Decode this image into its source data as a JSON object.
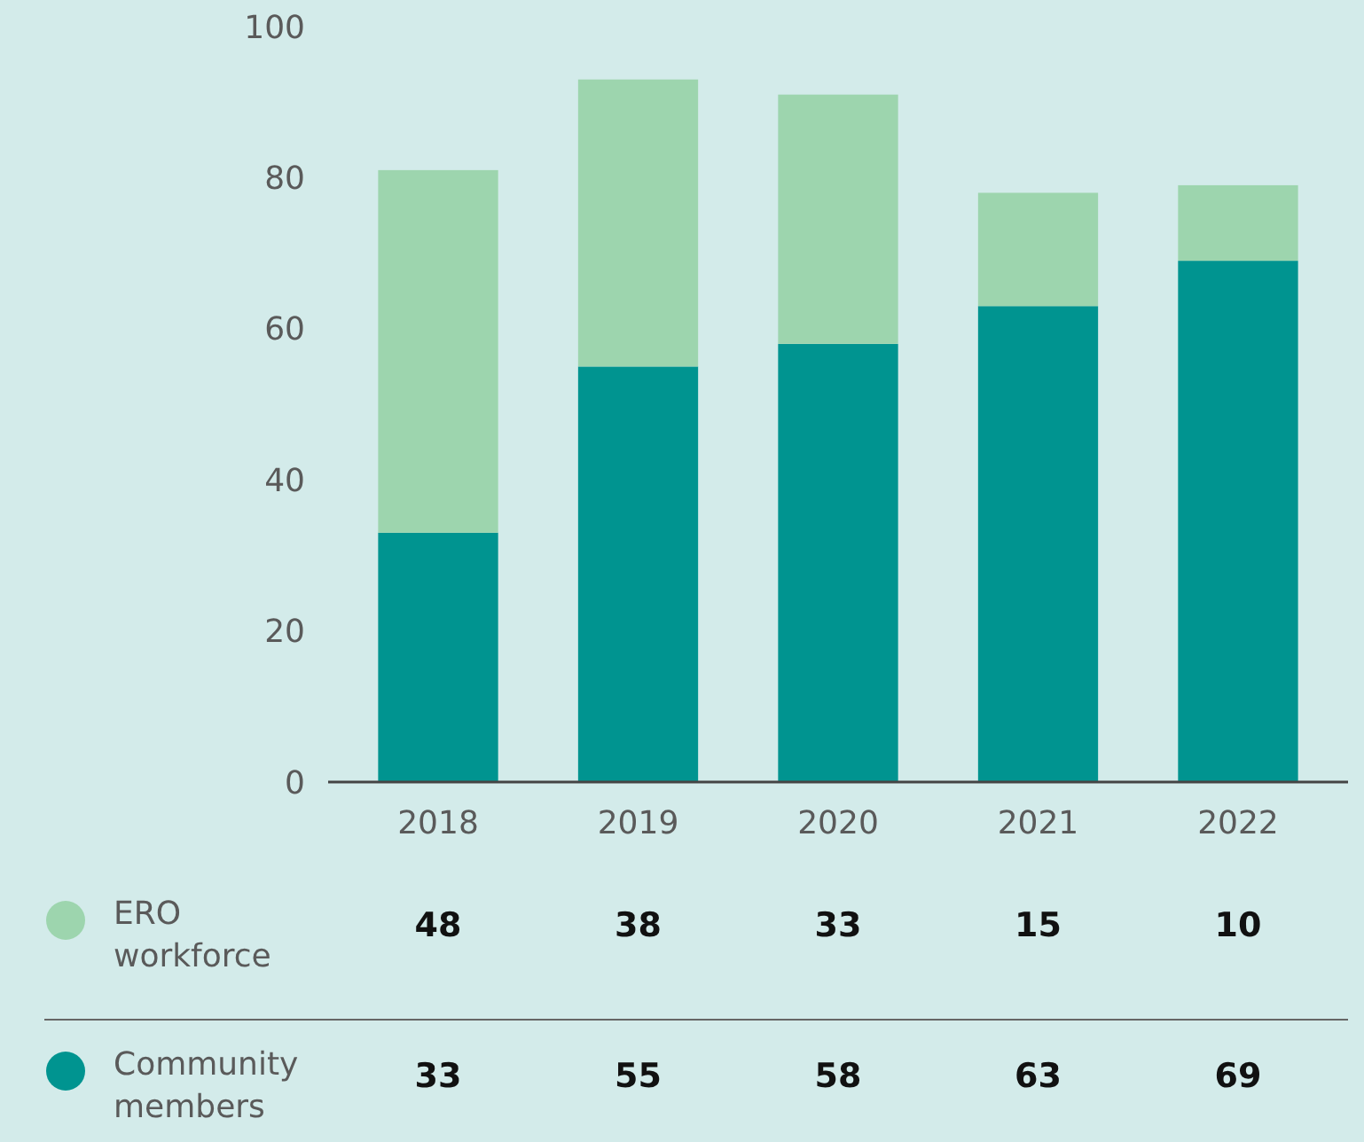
{
  "chart_data": {
    "type": "bar",
    "stacked": true,
    "categories": [
      "2018",
      "2019",
      "2020",
      "2021",
      "2022"
    ],
    "series": [
      {
        "name": "Community members",
        "color": "#009490",
        "values": [
          33,
          55,
          58,
          63,
          69
        ]
      },
      {
        "name": "ERO workforce",
        "color": "#9dd5ae",
        "values": [
          48,
          38,
          33,
          15,
          10
        ]
      }
    ],
    "ylim": [
      0,
      100
    ],
    "yticks": [
      0,
      20,
      40,
      60,
      80,
      100
    ],
    "data_labels": true,
    "legend": "bottom",
    "grid": false
  }
}
